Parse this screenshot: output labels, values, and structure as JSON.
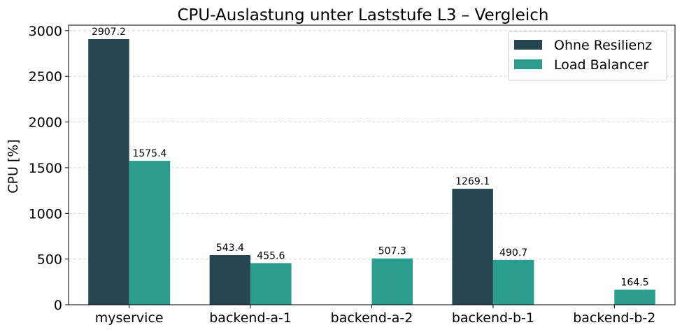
{
  "chart_data": {
    "type": "bar",
    "title": "CPU-Auslastung unter Laststufe L3 – Vergleich",
    "xlabel": "",
    "ylabel": "CPU [%]",
    "ylim": [
      0,
      3060
    ],
    "yticks": [
      0,
      500,
      1000,
      1500,
      2000,
      2500,
      3000
    ],
    "categories": [
      "myservice",
      "backend-a-1",
      "backend-a-2",
      "backend-b-1",
      "backend-b-2"
    ],
    "series": [
      {
        "name": "Ohne Resilienz",
        "color": "#264653",
        "values": [
          2907.2,
          543.4,
          null,
          1269.1,
          null
        ],
        "labels": [
          "2907.2",
          "543.4",
          "",
          "1269.1",
          ""
        ]
      },
      {
        "name": "Load Balancer",
        "color": "#2a9d8f",
        "values": [
          1575.4,
          455.6,
          507.3,
          490.7,
          164.5
        ],
        "labels": [
          "1575.4",
          "455.6",
          "507.3",
          "490.7",
          "164.5"
        ]
      }
    ],
    "grid": "y-dashed",
    "legend": "top-right"
  }
}
